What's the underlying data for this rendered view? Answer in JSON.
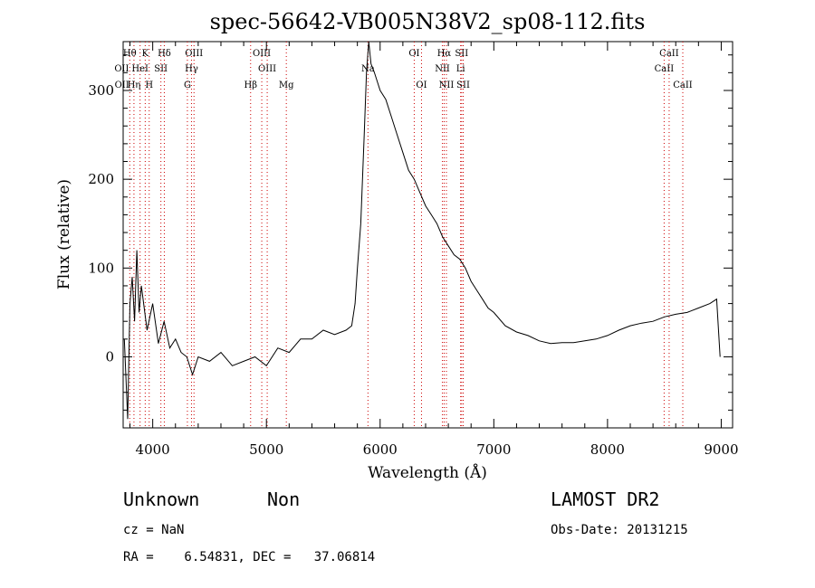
{
  "chart_data": {
    "type": "line",
    "title": "spec-56642-VB005N38V2_sp08-112.fits",
    "xlabel": "Wavelength (Å)",
    "ylabel": "Flux (relative)",
    "xlim": [
      3740,
      9100
    ],
    "ylim": [
      -80,
      355
    ],
    "xticks": [
      4000,
      5000,
      6000,
      7000,
      8000,
      9000
    ],
    "yticks": [
      0,
      100,
      200,
      300
    ],
    "xtick_labels": [
      "4000",
      "5000",
      "6000",
      "7000",
      "8000",
      "9000"
    ],
    "ytick_labels": [
      "0",
      "100",
      "200",
      "300"
    ],
    "grid": false,
    "series": [
      {
        "name": "",
        "x": [
          3750,
          3780,
          3800,
          3820,
          3840,
          3860,
          3880,
          3900,
          3950,
          4000,
          4050,
          4100,
          4150,
          4200,
          4250,
          4300,
          4350,
          4400,
          4500,
          4600,
          4700,
          4800,
          4900,
          5000,
          5100,
          5200,
          5300,
          5400,
          5500,
          5600,
          5700,
          5750,
          5780,
          5800,
          5830,
          5860,
          5880,
          5900,
          5920,
          5950,
          6000,
          6050,
          6100,
          6150,
          6200,
          6250,
          6300,
          6350,
          6400,
          6450,
          6500,
          6550,
          6600,
          6650,
          6700,
          6750,
          6800,
          6850,
          6900,
          6950,
          7000,
          7100,
          7200,
          7300,
          7400,
          7500,
          7600,
          7700,
          7800,
          7900,
          8000,
          8100,
          8200,
          8300,
          8400,
          8500,
          8600,
          8700,
          8800,
          8900,
          8960,
          8990
        ],
        "y": [
          20,
          -70,
          60,
          90,
          40,
          120,
          50,
          80,
          30,
          60,
          15,
          40,
          10,
          20,
          5,
          0,
          -20,
          0,
          -5,
          5,
          -10,
          -5,
          0,
          -10,
          10,
          5,
          20,
          20,
          30,
          25,
          30,
          35,
          60,
          100,
          150,
          250,
          320,
          355,
          330,
          320,
          300,
          290,
          270,
          250,
          230,
          210,
          200,
          185,
          170,
          160,
          150,
          135,
          125,
          115,
          110,
          100,
          85,
          75,
          65,
          55,
          50,
          35,
          28,
          24,
          18,
          15,
          16,
          16,
          18,
          20,
          24,
          30,
          35,
          38,
          40,
          45,
          48,
          50,
          55,
          60,
          65,
          0
        ]
      }
    ],
    "line_markers": [
      {
        "label": "Hθ",
        "wl": 3798,
        "row": 1
      },
      {
        "label": "K",
        "wl": 3934,
        "row": 1
      },
      {
        "label": "Hδ",
        "wl": 4102,
        "row": 1
      },
      {
        "label": "OIII",
        "wl": 4363,
        "row": 1
      },
      {
        "label": "OIII",
        "wl": 4959,
        "row": 1
      },
      {
        "label": "OI",
        "wl": 6300,
        "row": 1
      },
      {
        "label": "Hα",
        "wl": 6563,
        "row": 1
      },
      {
        "label": "SII",
        "wl": 6717,
        "row": 1
      },
      {
        "label": "CaII",
        "wl": 8542,
        "row": 1
      },
      {
        "label": "OII",
        "wl": 3727,
        "row": 2
      },
      {
        "label": "HeI",
        "wl": 3889,
        "row": 2
      },
      {
        "label": "SII",
        "wl": 4072,
        "row": 2
      },
      {
        "label": "Hγ",
        "wl": 4341,
        "row": 2
      },
      {
        "label": "OIII",
        "wl": 5007,
        "row": 2
      },
      {
        "label": "Na",
        "wl": 5893,
        "row": 2
      },
      {
        "label": "NII",
        "wl": 6548,
        "row": 2
      },
      {
        "label": "Li",
        "wl": 6708,
        "row": 2
      },
      {
        "label": "CaII",
        "wl": 8498,
        "row": 2
      },
      {
        "label": "OII",
        "wl": 3729,
        "row": 3
      },
      {
        "label": "Hη",
        "wl": 3835,
        "row": 3
      },
      {
        "label": "H",
        "wl": 3969,
        "row": 3
      },
      {
        "label": "G",
        "wl": 4305,
        "row": 3
      },
      {
        "label": "Hβ",
        "wl": 4861,
        "row": 3
      },
      {
        "label": "Mg",
        "wl": 5175,
        "row": 3
      },
      {
        "label": "OI",
        "wl": 6364,
        "row": 3
      },
      {
        "label": "NII",
        "wl": 6583,
        "row": 3
      },
      {
        "label": "SII",
        "wl": 6731,
        "row": 3
      },
      {
        "label": "CaII",
        "wl": 8662,
        "row": 3
      }
    ],
    "line_marker_color": "#cc0000"
  },
  "info": {
    "class": "Unknown",
    "subclass": "Non",
    "survey": "LAMOST DR2",
    "cz": "cz = NaN",
    "obs_date": "Obs-Date: 20131215",
    "coords": "RA =    6.54831, DEC =   37.06814"
  }
}
